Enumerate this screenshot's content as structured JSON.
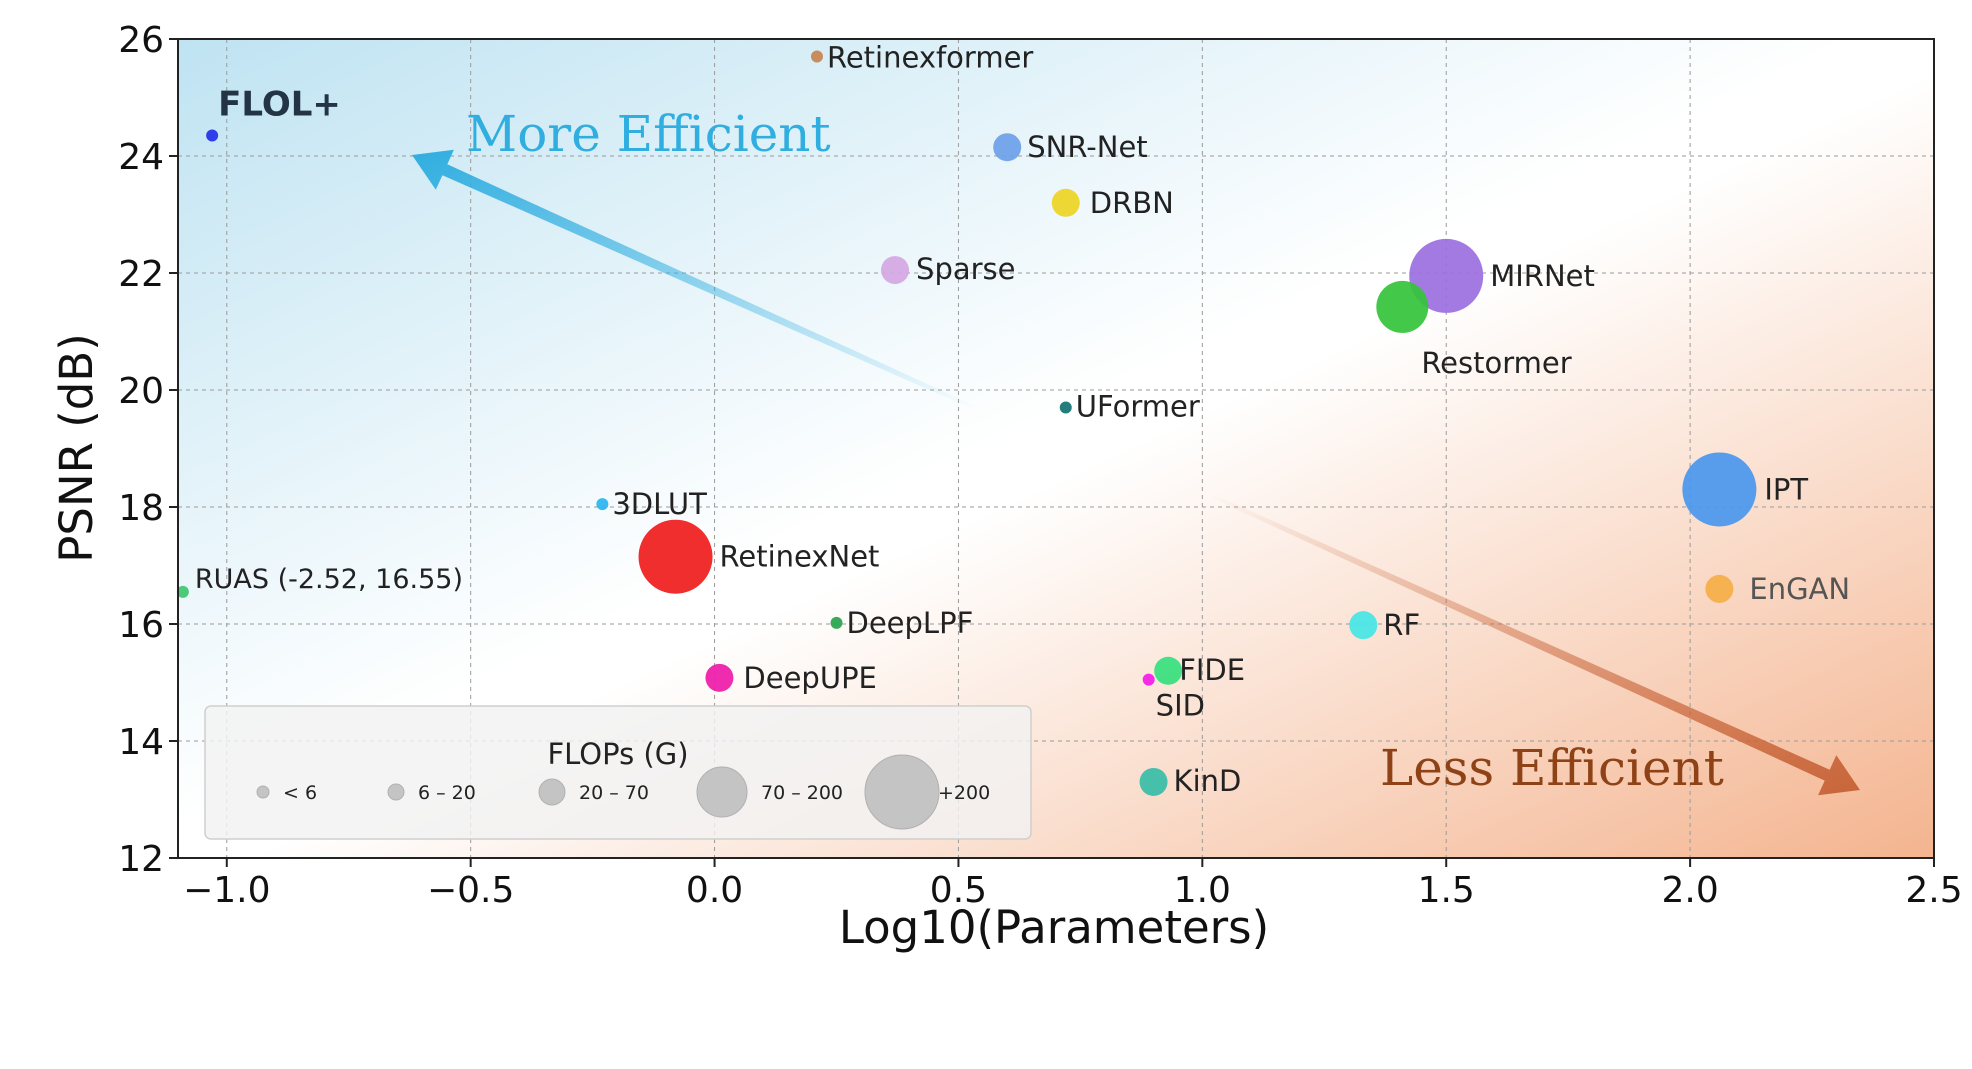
{
  "chart_data": {
    "type": "scatter",
    "xlabel": "Log10(Parameters)",
    "ylabel": "PSNR (dB)",
    "xlim": [
      -1.1,
      2.5
    ],
    "ylim": [
      12,
      26
    ],
    "x_ticks": [
      -1.0,
      -0.5,
      0.0,
      0.5,
      1.0,
      1.5,
      2.0,
      2.5
    ],
    "x_tick_labels": [
      "−1.0",
      "−0.5",
      "0.0",
      "0.5",
      "1.0",
      "1.5",
      "2.0",
      "2.5"
    ],
    "y_ticks": [
      12,
      14,
      16,
      18,
      20,
      22,
      24,
      26
    ],
    "y_tick_labels": [
      "12",
      "14",
      "16",
      "18",
      "20",
      "22",
      "24",
      "26"
    ],
    "grid": true,
    "background_gradient": {
      "top_left": "#bfe3f2",
      "bottom_right": "#f4b48f"
    },
    "points": [
      {
        "label": "FLOL+",
        "x": -1.03,
        "y": 24.35,
        "size_class": "<6",
        "color": "#2130e8",
        "bold": true
      },
      {
        "label": "Retinexformer",
        "x": 0.21,
        "y": 25.7,
        "size_class": "<6",
        "color": "#c8834e"
      },
      {
        "label": "SNR-Net",
        "x": 0.6,
        "y": 24.15,
        "size_class": "6-20",
        "color": "#6b9fe8"
      },
      {
        "label": "DRBN",
        "x": 0.72,
        "y": 23.2,
        "size_class": "6-20",
        "color": "#ecd424"
      },
      {
        "label": "Sparse",
        "x": 0.37,
        "y": 22.05,
        "size_class": "6-20",
        "color": "#d4a6e2"
      },
      {
        "label": "MIRNet",
        "x": 1.5,
        "y": 21.95,
        "size_class": "70-200",
        "color": "#9b6fdf"
      },
      {
        "label": "Restormer",
        "x": 1.41,
        "y": 21.42,
        "size_class": "20-70",
        "color": "#33c33a"
      },
      {
        "label": "UFormer",
        "x": 0.72,
        "y": 19.7,
        "size_class": "<6",
        "color": "#127272"
      },
      {
        "label": "IPT",
        "x": 2.06,
        "y": 18.3,
        "size_class": "70-200",
        "color": "#4a97ee"
      },
      {
        "label": "3DLUT",
        "x": -0.23,
        "y": 18.05,
        "size_class": "<6",
        "color": "#2ab4f0"
      },
      {
        "label": "RetinexNet",
        "x": -0.08,
        "y": 17.15,
        "size_class": "70-200",
        "color": "#f01c1c"
      },
      {
        "label": "RUAS (-2.52, 16.55)",
        "x": -1.09,
        "y": 16.55,
        "size_class": "<6",
        "color": "#3ec46e"
      },
      {
        "label": "EnGAN",
        "x": 2.06,
        "y": 16.6,
        "size_class": "6-20",
        "color": "#f5ae46"
      },
      {
        "label": "DeepLPF",
        "x": 0.25,
        "y": 16.02,
        "size_class": "<6",
        "color": "#28a24c"
      },
      {
        "label": "RF",
        "x": 1.33,
        "y": 15.98,
        "size_class": "6-20",
        "color": "#44e6e6"
      },
      {
        "label": "FIDE",
        "x": 0.93,
        "y": 15.2,
        "size_class": "6-20",
        "color": "#36e07c"
      },
      {
        "label": "DeepUPE",
        "x": 0.01,
        "y": 15.08,
        "size_class": "6-20",
        "color": "#ee1aa8"
      },
      {
        "label": "SID",
        "x": 0.89,
        "y": 15.05,
        "size_class": "<6",
        "color": "#f51ae8"
      },
      {
        "label": "KinD",
        "x": 0.9,
        "y": 13.3,
        "size_class": "6-20",
        "color": "#36bca8"
      }
    ],
    "annotations": [
      {
        "text": "More Efficient",
        "color": "#30aee0"
      },
      {
        "text": "Less Efficient",
        "color": "#8e4216"
      }
    ],
    "legend": {
      "title": "FLOPs (G)",
      "placement": "lower-left",
      "entries": [
        "< 6",
        "6 – 20",
        "20 – 70",
        "70 – 200",
        "+200"
      ]
    }
  }
}
